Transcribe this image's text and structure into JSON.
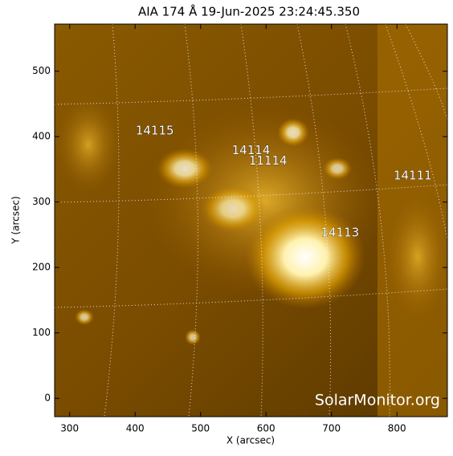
{
  "chart_data": {
    "type": "image",
    "title": "AIA 174 Å 19-Jun-2025 23:24:45.350",
    "x_label": "X (arcsec)",
    "y_label": "Y (arcsec)",
    "xlim": [
      277,
      877
    ],
    "ylim": [
      -28,
      572
    ],
    "xticks": [
      300,
      400,
      500,
      600,
      700,
      800
    ],
    "yticks": [
      0,
      100,
      200,
      300,
      400,
      500
    ],
    "annotations": [
      {
        "text": "14115",
        "x": 430,
        "y": 409
      },
      {
        "text": "14114",
        "x": 577,
        "y": 379
      },
      {
        "text": "11114",
        "x": 603,
        "y": 363
      },
      {
        "text": "14113",
        "x": 713,
        "y": 253
      },
      {
        "text": "14111",
        "x": 824,
        "y": 340
      }
    ],
    "watermark": "SolarMonitor.org"
  }
}
